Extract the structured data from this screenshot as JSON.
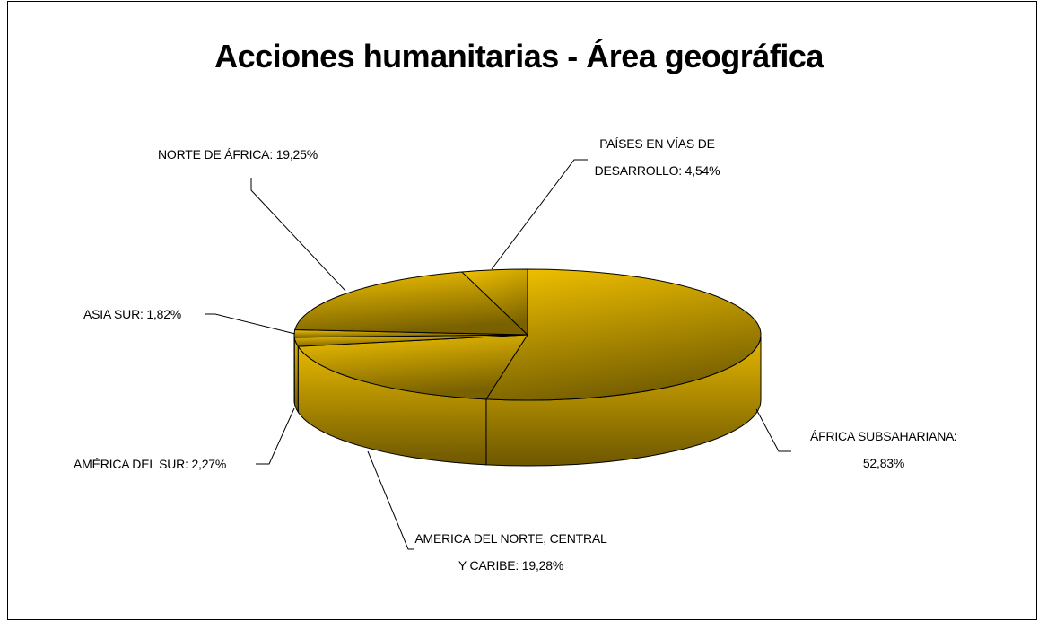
{
  "chart_data": {
    "type": "pie3d",
    "title": "Acciones humanitarias - Área geográfica",
    "values": [
      52.83,
      19.28,
      2.27,
      1.82,
      19.25,
      4.54
    ],
    "value_labels": [
      "ÁFRICA SUBSAHARIANA: 52,83%",
      "AMERICA DEL NORTE, CENTRAL Y CARIBE: 19,28%",
      "AMÉRICA DEL SUR: 2,27%",
      "ASIA SUR: 1,82%",
      "NORTE DE ÁFRICA: 19,25%",
      "PAÍSES EN VÍAS DE DESARROLLO: 4,54%"
    ],
    "color": "#f2c200"
  }
}
